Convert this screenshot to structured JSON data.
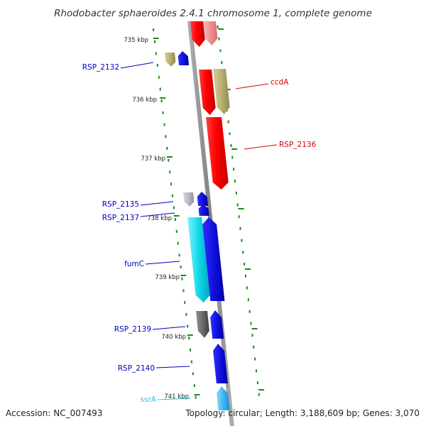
{
  "title": "Rhodobacter sphaeroides 2.4.1 chromosome 1, complete genome",
  "footer": {
    "accession": "Accession: NC_007493",
    "topology": "Topology: circular; Length: 3,188,609 bp; Genes: 3,070"
  },
  "colors": {
    "backbone": "#8c8c8c",
    "tick": "#1a8a1a",
    "blue": "#1010e0",
    "red": "#ff0000",
    "pink": "#f4a0a0",
    "olive": "#b8b070",
    "cyan": "#10d8e8",
    "gray": "#6a6a6a",
    "lightgray": "#b8b8c0",
    "skyblue": "#40b8f0"
  },
  "scale_labels": [
    "735 kbp",
    "736 kbp",
    "737 kbp",
    "738 kbp",
    "739 kbp",
    "740 kbp",
    "741 kbp"
  ],
  "gene_labels": [
    {
      "text": "RSP_2132",
      "color": "#0000c8",
      "side": "left"
    },
    {
      "text": "ccdA",
      "color": "#d80000",
      "side": "right"
    },
    {
      "text": "RSP_2136",
      "color": "#d80000",
      "side": "right"
    },
    {
      "text": "RSP_2135",
      "color": "#0000c8",
      "side": "left"
    },
    {
      "text": "RSP_2137",
      "color": "#0000c8",
      "side": "left"
    },
    {
      "text": "fumC",
      "color": "#0000c8",
      "side": "left"
    },
    {
      "text": "RSP_2139",
      "color": "#0000c8",
      "side": "left"
    },
    {
      "text": "RSP_2140",
      "color": "#0000c8",
      "side": "left"
    },
    {
      "text": "ssrA",
      "color": "#20c8e0",
      "side": "left"
    }
  ],
  "features": [
    {
      "name": "pink-gene",
      "color": "pink",
      "strand": "reverse"
    },
    {
      "name": "top-red-gene",
      "color": "red",
      "strand": "reverse"
    },
    {
      "name": "olive-gene-rsp2132",
      "color": "olive",
      "strand": "reverse"
    },
    {
      "name": "blue-gene-rsp2132",
      "color": "blue",
      "strand": "forward"
    },
    {
      "name": "red-gene-ccdA-left",
      "color": "red",
      "strand": "reverse"
    },
    {
      "name": "olive-gene-ccdA",
      "color": "olive",
      "strand": "reverse"
    },
    {
      "name": "red-gene-rsp2136",
      "color": "red",
      "strand": "reverse"
    },
    {
      "name": "gray-gene-rsp2135",
      "color": "lightgray",
      "strand": "reverse"
    },
    {
      "name": "blue-gene-rsp2135",
      "color": "blue",
      "strand": "forward"
    },
    {
      "name": "blue-gene-rsp2137",
      "color": "blue",
      "strand": "forward"
    },
    {
      "name": "cyan-gene-fumC",
      "color": "cyan",
      "strand": "reverse"
    },
    {
      "name": "blue-gene-fumC",
      "color": "blue",
      "strand": "forward"
    },
    {
      "name": "gray-gene-rsp2139",
      "color": "gray",
      "strand": "reverse"
    },
    {
      "name": "blue-gene-rsp2139",
      "color": "blue",
      "strand": "forward"
    },
    {
      "name": "blue-gene-rsp2140",
      "color": "blue",
      "strand": "forward"
    },
    {
      "name": "skyblue-gene-ssrA",
      "color": "skyblue",
      "strand": "forward"
    }
  ]
}
